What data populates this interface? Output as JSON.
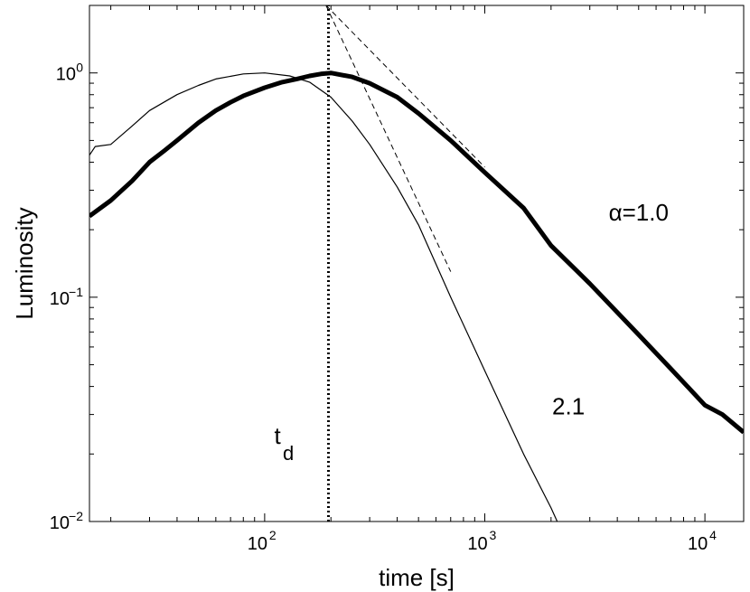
{
  "chart_data": {
    "type": "line",
    "title": "",
    "xlabel": "time [s]",
    "ylabel": "Luminosity",
    "xscale": "log",
    "yscale": "log",
    "xlim": [
      16,
      15000
    ],
    "ylim": [
      0.01,
      2.0
    ],
    "grid": false,
    "legend": "none",
    "x_ticks": [
      {
        "value": 100,
        "base": "10",
        "exp": "2"
      },
      {
        "value": 1000,
        "base": "10",
        "exp": "3"
      },
      {
        "value": 10000,
        "base": "10",
        "exp": "4"
      }
    ],
    "y_ticks": [
      {
        "value": 0.01,
        "base": "10",
        "exp": "−2"
      },
      {
        "value": 0.1,
        "base": "10",
        "exp": "−1"
      },
      {
        "value": 1,
        "base": "10",
        "exp": "0"
      }
    ],
    "series": [
      {
        "style": "thick-solid",
        "x": [
          16,
          20,
          25,
          30,
          35,
          40,
          50,
          60,
          70,
          80,
          100,
          120,
          140,
          160,
          180,
          200,
          250,
          300,
          400,
          500,
          700,
          1000,
          1500,
          2000,
          3000,
          5000,
          7000,
          10000,
          12000,
          15000
        ],
        "y": [
          0.23,
          0.27,
          0.33,
          0.4,
          0.45,
          0.5,
          0.6,
          0.68,
          0.74,
          0.79,
          0.86,
          0.91,
          0.94,
          0.97,
          0.99,
          1.0,
          0.96,
          0.9,
          0.78,
          0.66,
          0.5,
          0.36,
          0.25,
          0.17,
          0.115,
          0.068,
          0.048,
          0.033,
          0.03,
          0.025
        ]
      },
      {
        "style": "thin-solid",
        "x": [
          16,
          17,
          20,
          25,
          30,
          40,
          50,
          60,
          80,
          100,
          130,
          160,
          200,
          250,
          300,
          400,
          500,
          700,
          1000,
          1500,
          2000,
          2300
        ],
        "y": [
          0.43,
          0.47,
          0.48,
          0.58,
          0.68,
          0.8,
          0.88,
          0.94,
          0.99,
          1.0,
          0.97,
          0.91,
          0.78,
          0.61,
          0.48,
          0.31,
          0.21,
          0.1,
          0.047,
          0.02,
          0.0115,
          0.0085
        ]
      },
      {
        "style": "dashed",
        "x": [
          190,
          1000
        ],
        "y": [
          2.0,
          0.38
        ]
      },
      {
        "style": "dashed",
        "x": [
          190,
          700
        ],
        "y": [
          2.0,
          0.13
        ]
      },
      {
        "style": "dotted-vertical",
        "x": [
          195,
          195
        ],
        "y": [
          0.01,
          2.0
        ]
      }
    ],
    "annotations": [
      {
        "text": "α=1.0",
        "x": 5000,
        "y": 0.22
      },
      {
        "text": "2.1",
        "x": 2400,
        "y": 0.03
      },
      {
        "text_main": "t",
        "text_sub": "d",
        "x": 120,
        "y": 0.021
      }
    ]
  }
}
